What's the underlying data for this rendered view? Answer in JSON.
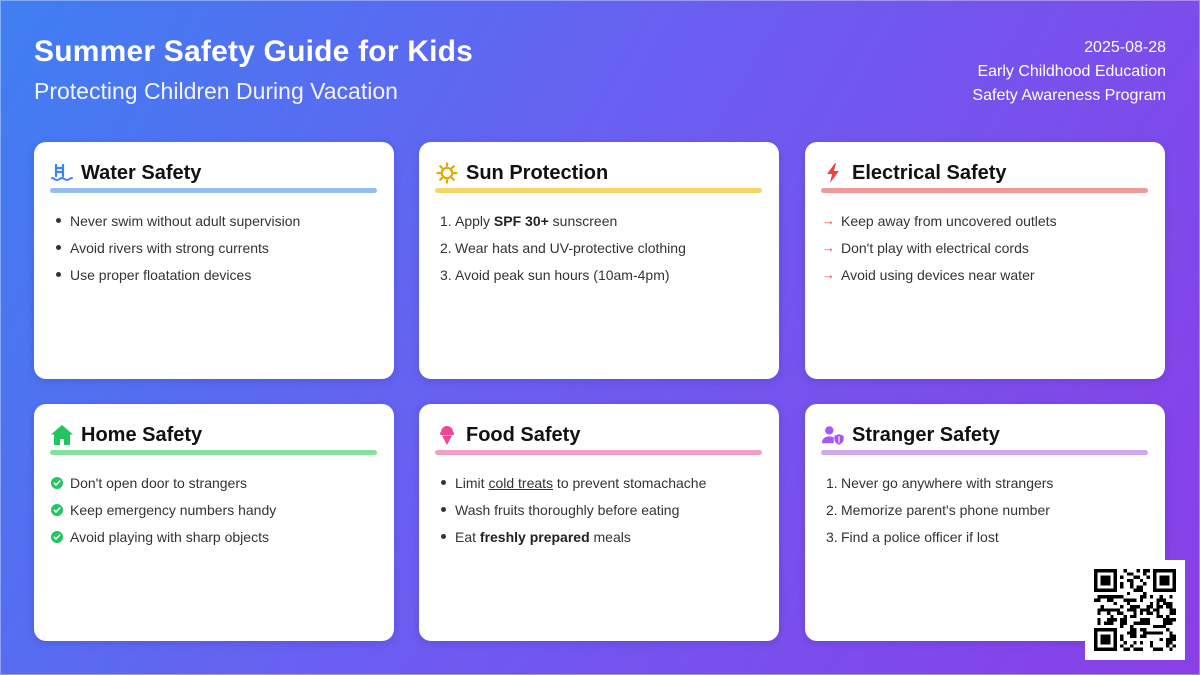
{
  "header": {
    "title": "Summer Safety Guide for Kids",
    "subtitle": "Protecting Children During Vacation"
  },
  "meta": {
    "date": "2025-08-28",
    "department": "Early Childhood Education",
    "program": "Safety Awareness Program"
  },
  "cards": [
    {
      "title": "Water Safety",
      "icon": "swimming-pool-icon",
      "accent": "#93bff0",
      "list_style": "bullet",
      "items": [
        {
          "text": "Never swim without adult supervision"
        },
        {
          "text": "Avoid rivers with strong currents"
        },
        {
          "text": "Use proper floatation devices"
        }
      ]
    },
    {
      "title": "Sun Protection",
      "icon": "sun-icon",
      "accent": "#f5d56a",
      "list_style": "numbered",
      "items": [
        {
          "pre": "Apply ",
          "bold": "SPF 30+",
          "post": " sunscreen"
        },
        {
          "text": "Wear hats and UV-protective clothing"
        },
        {
          "text": "Avoid peak sun hours (10am-4pm)"
        }
      ]
    },
    {
      "title": "Electrical Safety",
      "icon": "lightning-bolt-icon",
      "accent": "#f09a9a",
      "list_style": "arrow",
      "items": [
        {
          "text": "Keep away from uncovered outlets"
        },
        {
          "text": "Don't play with electrical cords"
        },
        {
          "text": "Avoid using devices near water"
        }
      ]
    },
    {
      "title": "Home Safety",
      "icon": "house-icon",
      "accent": "#86e0a0",
      "list_style": "check",
      "items": [
        {
          "text": "Don't open door to strangers"
        },
        {
          "text": "Keep emergency numbers handy"
        },
        {
          "text": "Avoid playing with sharp objects"
        }
      ]
    },
    {
      "title": "Food Safety",
      "icon": "ice-cream-icon",
      "accent": "#f0a0c8",
      "list_style": "bullet",
      "items": [
        {
          "pre": "Limit ",
          "underline": "cold treats",
          "post": " to prevent stomachache"
        },
        {
          "text": "Wash fruits thoroughly before eating"
        },
        {
          "pre": "Eat ",
          "bold": "freshly prepared",
          "post": " meals"
        }
      ]
    },
    {
      "title": "Stranger Safety",
      "icon": "user-shield-icon",
      "accent": "#cfa8f0",
      "list_style": "numbered",
      "items": [
        {
          "text": "Never go anywhere with strangers"
        },
        {
          "text": "Memorize parent's phone number"
        },
        {
          "text": "Find a police officer if lost"
        }
      ]
    }
  ],
  "qr_code": {
    "icon": "qr-code-icon"
  }
}
